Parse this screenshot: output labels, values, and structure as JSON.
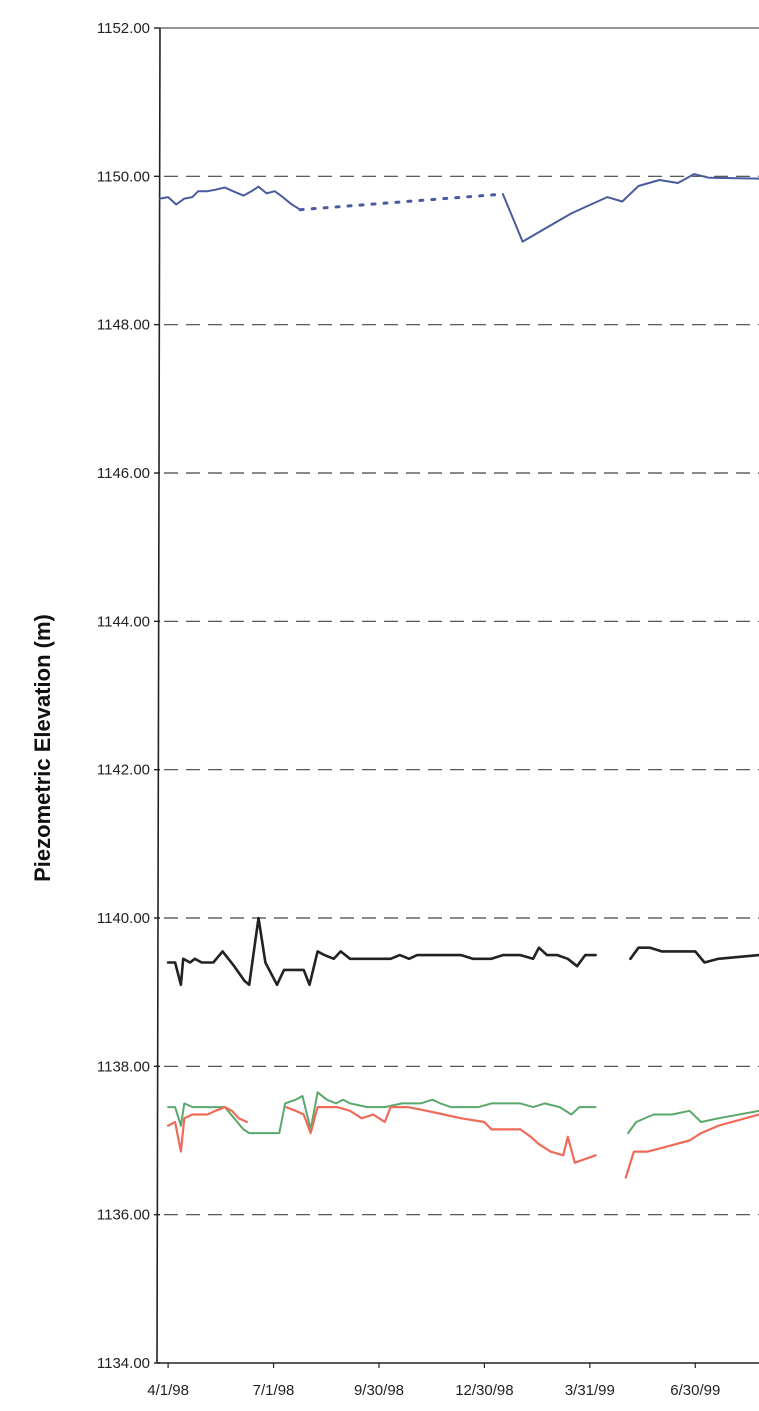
{
  "chart_data": {
    "type": "line",
    "title": "",
    "xlabel": "",
    "ylabel": "Piezometric Elevation (m)",
    "ylim": [
      1134,
      1152
    ],
    "xlim": [
      "1998-03-25",
      "1999-08-24"
    ],
    "grid": "horizontal dashed",
    "yticks": [
      "1134.00",
      "1136.00",
      "1138.00",
      "1140.00",
      "1142.00",
      "1144.00",
      "1146.00",
      "1148.00",
      "1150.00",
      "1152.00"
    ],
    "xticks": [
      {
        "date": "1998-04-01",
        "label": "4/1/98"
      },
      {
        "date": "1998-07-01",
        "label": "7/1/98"
      },
      {
        "date": "1998-09-30",
        "label": "9/30/98"
      },
      {
        "date": "1998-12-30",
        "label": "12/30/98"
      },
      {
        "date": "1999-03-31",
        "label": "3/31/99"
      },
      {
        "date": "1999-06-30",
        "label": "6/30/99"
      }
    ],
    "series": [
      {
        "color": "#4a5a9e",
        "width": 2,
        "segments": [
          [
            [
              "1998-03-25",
              1149.7
            ],
            [
              "1998-04-01",
              1149.72
            ],
            [
              "1998-04-08",
              1149.62
            ],
            [
              "1998-04-15",
              1149.7
            ],
            [
              "1998-04-22",
              1149.72
            ],
            [
              "1998-04-27",
              1149.8
            ],
            [
              "1998-05-05",
              1149.8
            ],
            [
              "1998-05-12",
              1149.82
            ],
            [
              "1998-05-20",
              1149.85
            ],
            [
              "1998-05-27",
              1149.8
            ],
            [
              "1998-06-05",
              1149.74
            ],
            [
              "1998-06-12",
              1149.8
            ],
            [
              "1998-06-18",
              1149.86
            ],
            [
              "1998-06-25",
              1149.77
            ],
            [
              "1998-07-02",
              1149.8
            ],
            [
              "1998-07-09",
              1149.72
            ],
            [
              "1998-07-16",
              1149.63
            ],
            [
              "1998-07-24",
              1149.55
            ]
          ],
          [
            [
              "1999-01-15",
              1149.76
            ],
            [
              "1999-02-01",
              1149.12
            ],
            [
              "1999-03-15",
              1149.5
            ],
            [
              "1999-04-15",
              1149.72
            ],
            [
              "1999-04-28",
              1149.66
            ],
            [
              "1999-05-12",
              1149.87
            ],
            [
              "1999-05-30",
              1149.95
            ],
            [
              "1999-06-15",
              1149.91
            ],
            [
              "1999-06-29",
              1150.03
            ],
            [
              "1999-07-12",
              1149.98
            ],
            [
              "1999-08-24",
              1149.97
            ]
          ]
        ],
        "dotted": [
          [
            "1998-07-24",
            1149.55
          ],
          [
            "1999-01-15",
            1149.76
          ]
        ]
      },
      {
        "color": "#222222",
        "width": 2.6,
        "segments": [
          [
            [
              "1998-04-01",
              1139.4
            ],
            [
              "1998-04-07",
              1139.4
            ],
            [
              "1998-04-12",
              1139.1
            ],
            [
              "1998-04-14",
              1139.45
            ],
            [
              "1998-04-20",
              1139.4
            ],
            [
              "1998-04-24",
              1139.45
            ],
            [
              "1998-04-30",
              1139.4
            ],
            [
              "1998-05-10",
              1139.4
            ],
            [
              "1998-05-18",
              1139.55
            ],
            [
              "1998-05-28",
              1139.35
            ],
            [
              "1998-06-06",
              1139.15
            ],
            [
              "1998-06-10",
              1139.1
            ],
            [
              "1998-06-18",
              1140.0
            ],
            [
              "1998-06-24",
              1139.4
            ],
            [
              "1998-07-04",
              1139.1
            ],
            [
              "1998-07-10",
              1139.3
            ],
            [
              "1998-07-17",
              1139.3
            ],
            [
              "1998-07-27",
              1139.3
            ],
            [
              "1998-08-01",
              1139.1
            ],
            [
              "1998-08-08",
              1139.55
            ],
            [
              "1998-08-14",
              1139.5
            ],
            [
              "1998-08-22",
              1139.45
            ],
            [
              "1998-08-28",
              1139.55
            ],
            [
              "1998-09-05",
              1139.45
            ],
            [
              "1998-09-25",
              1139.45
            ],
            [
              "1998-10-10",
              1139.45
            ],
            [
              "1998-10-18",
              1139.5
            ],
            [
              "1998-10-26",
              1139.45
            ],
            [
              "1998-11-02",
              1139.5
            ],
            [
              "1998-12-10",
              1139.5
            ],
            [
              "1998-12-20",
              1139.45
            ],
            [
              "1999-01-05",
              1139.45
            ],
            [
              "1999-01-15",
              1139.5
            ],
            [
              "1999-01-30",
              1139.5
            ],
            [
              "1999-02-10",
              1139.45
            ],
            [
              "1999-02-15",
              1139.6
            ],
            [
              "1999-02-22",
              1139.5
            ],
            [
              "1999-03-03",
              1139.5
            ],
            [
              "1999-03-12",
              1139.45
            ],
            [
              "1999-03-20",
              1139.35
            ],
            [
              "1999-03-27",
              1139.5
            ],
            [
              "1999-04-05",
              1139.5
            ]
          ],
          [
            [
              "1999-05-05",
              1139.45
            ],
            [
              "1999-05-12",
              1139.6
            ],
            [
              "1999-05-22",
              1139.6
            ],
            [
              "1999-06-01",
              1139.55
            ],
            [
              "1999-06-20",
              1139.55
            ],
            [
              "1999-06-30",
              1139.55
            ],
            [
              "1999-07-08",
              1139.4
            ],
            [
              "1999-07-20",
              1139.45
            ],
            [
              "1999-08-24",
              1139.5
            ]
          ]
        ]
      },
      {
        "color": "#5aa86c",
        "width": 2,
        "segments": [
          [
            [
              "1998-04-01",
              1137.45
            ],
            [
              "1998-04-07",
              1137.45
            ],
            [
              "1998-04-12",
              1137.2
            ],
            [
              "1998-04-15",
              1137.5
            ],
            [
              "1998-04-22",
              1137.45
            ],
            [
              "1998-05-05",
              1137.45
            ],
            [
              "1998-05-20",
              1137.45
            ],
            [
              "1998-05-28",
              1137.3
            ],
            [
              "1998-06-05",
              1137.15
            ],
            [
              "1998-06-10",
              1137.1
            ],
            [
              "1998-06-20",
              1137.1
            ],
            [
              "1998-06-30",
              1137.1
            ],
            [
              "1998-07-06",
              1137.1
            ],
            [
              "1998-07-11",
              1137.5
            ],
            [
              "1998-07-20",
              1137.55
            ],
            [
              "1998-07-26",
              1137.6
            ],
            [
              "1998-08-02",
              1137.15
            ],
            [
              "1998-08-08",
              1137.65
            ],
            [
              "1998-08-16",
              1137.55
            ],
            [
              "1998-08-24",
              1137.5
            ],
            [
              "1998-08-30",
              1137.55
            ],
            [
              "1998-09-05",
              1137.5
            ],
            [
              "1998-09-20",
              1137.45
            ],
            [
              "1998-10-05",
              1137.45
            ],
            [
              "1998-10-20",
              1137.5
            ],
            [
              "1998-11-05",
              1137.5
            ],
            [
              "1998-11-15",
              1137.55
            ],
            [
              "1998-11-22",
              1137.5
            ],
            [
              "1998-12-01",
              1137.45
            ],
            [
              "1998-12-25",
              1137.45
            ],
            [
              "1999-01-05",
              1137.5
            ],
            [
              "1999-01-30",
              1137.5
            ],
            [
              "1999-02-10",
              1137.45
            ],
            [
              "1999-02-20",
              1137.5
            ],
            [
              "1999-03-05",
              1137.45
            ],
            [
              "1999-03-15",
              1137.35
            ],
            [
              "1999-03-22",
              1137.45
            ],
            [
              "1999-04-05",
              1137.45
            ]
          ],
          [
            [
              "1999-05-03",
              1137.1
            ],
            [
              "1999-05-10",
              1137.25
            ],
            [
              "1999-05-25",
              1137.35
            ],
            [
              "1999-06-10",
              1137.35
            ],
            [
              "1999-06-25",
              1137.4
            ],
            [
              "1999-07-05",
              1137.25
            ],
            [
              "1999-07-20",
              1137.3
            ],
            [
              "1999-08-24",
              1137.4
            ]
          ]
        ]
      },
      {
        "color": "#f06a5a",
        "width": 2.2,
        "segments": [
          [
            [
              "1998-04-01",
              1137.2
            ],
            [
              "1998-04-07",
              1137.25
            ],
            [
              "1998-04-12",
              1136.85
            ],
            [
              "1998-04-15",
              1137.3
            ],
            [
              "1998-04-22",
              1137.35
            ],
            [
              "1998-05-05",
              1137.35
            ],
            [
              "1998-05-12",
              1137.4
            ],
            [
              "1998-05-20",
              1137.45
            ],
            [
              "1998-05-26",
              1137.4
            ],
            [
              "1998-06-01",
              1137.3
            ],
            [
              "1998-06-08",
              1137.25
            ]
          ],
          [
            [
              "1998-07-12",
              1137.45
            ],
            [
              "1998-07-20",
              1137.4
            ],
            [
              "1998-07-27",
              1137.35
            ],
            [
              "1998-08-02",
              1137.1
            ],
            [
              "1998-08-08",
              1137.45
            ],
            [
              "1998-08-15",
              1137.45
            ],
            [
              "1998-08-25",
              1137.45
            ],
            [
              "1998-09-05",
              1137.4
            ],
            [
              "1998-09-10",
              1137.35
            ],
            [
              "1998-09-15",
              1137.3
            ],
            [
              "1998-09-25",
              1137.35
            ],
            [
              "1998-10-05",
              1137.25
            ],
            [
              "1998-10-10",
              1137.45
            ],
            [
              "1998-10-25",
              1137.45
            ],
            [
              "1998-11-10",
              1137.4
            ],
            [
              "1998-11-25",
              1137.35
            ],
            [
              "1998-12-10",
              1137.3
            ],
            [
              "1998-12-30",
              1137.25
            ],
            [
              "1999-01-05",
              1137.15
            ],
            [
              "1999-01-30",
              1137.15
            ],
            [
              "1999-02-08",
              1137.05
            ],
            [
              "1999-02-15",
              1136.95
            ],
            [
              "1999-02-25",
              1136.85
            ],
            [
              "1999-03-08",
              1136.8
            ],
            [
              "1999-03-12",
              1137.05
            ],
            [
              "1999-03-18",
              1136.7
            ],
            [
              "1999-04-05",
              1136.8
            ]
          ],
          [
            [
              "1999-05-01",
              1136.5
            ],
            [
              "1999-05-08",
              1136.85
            ],
            [
              "1999-05-20",
              1136.85
            ],
            [
              "1999-06-01",
              1136.9
            ],
            [
              "1999-06-25",
              1137.0
            ],
            [
              "1999-07-05",
              1137.1
            ],
            [
              "1999-07-20",
              1137.2
            ],
            [
              "1999-08-24",
              1137.35
            ]
          ]
        ]
      }
    ]
  }
}
